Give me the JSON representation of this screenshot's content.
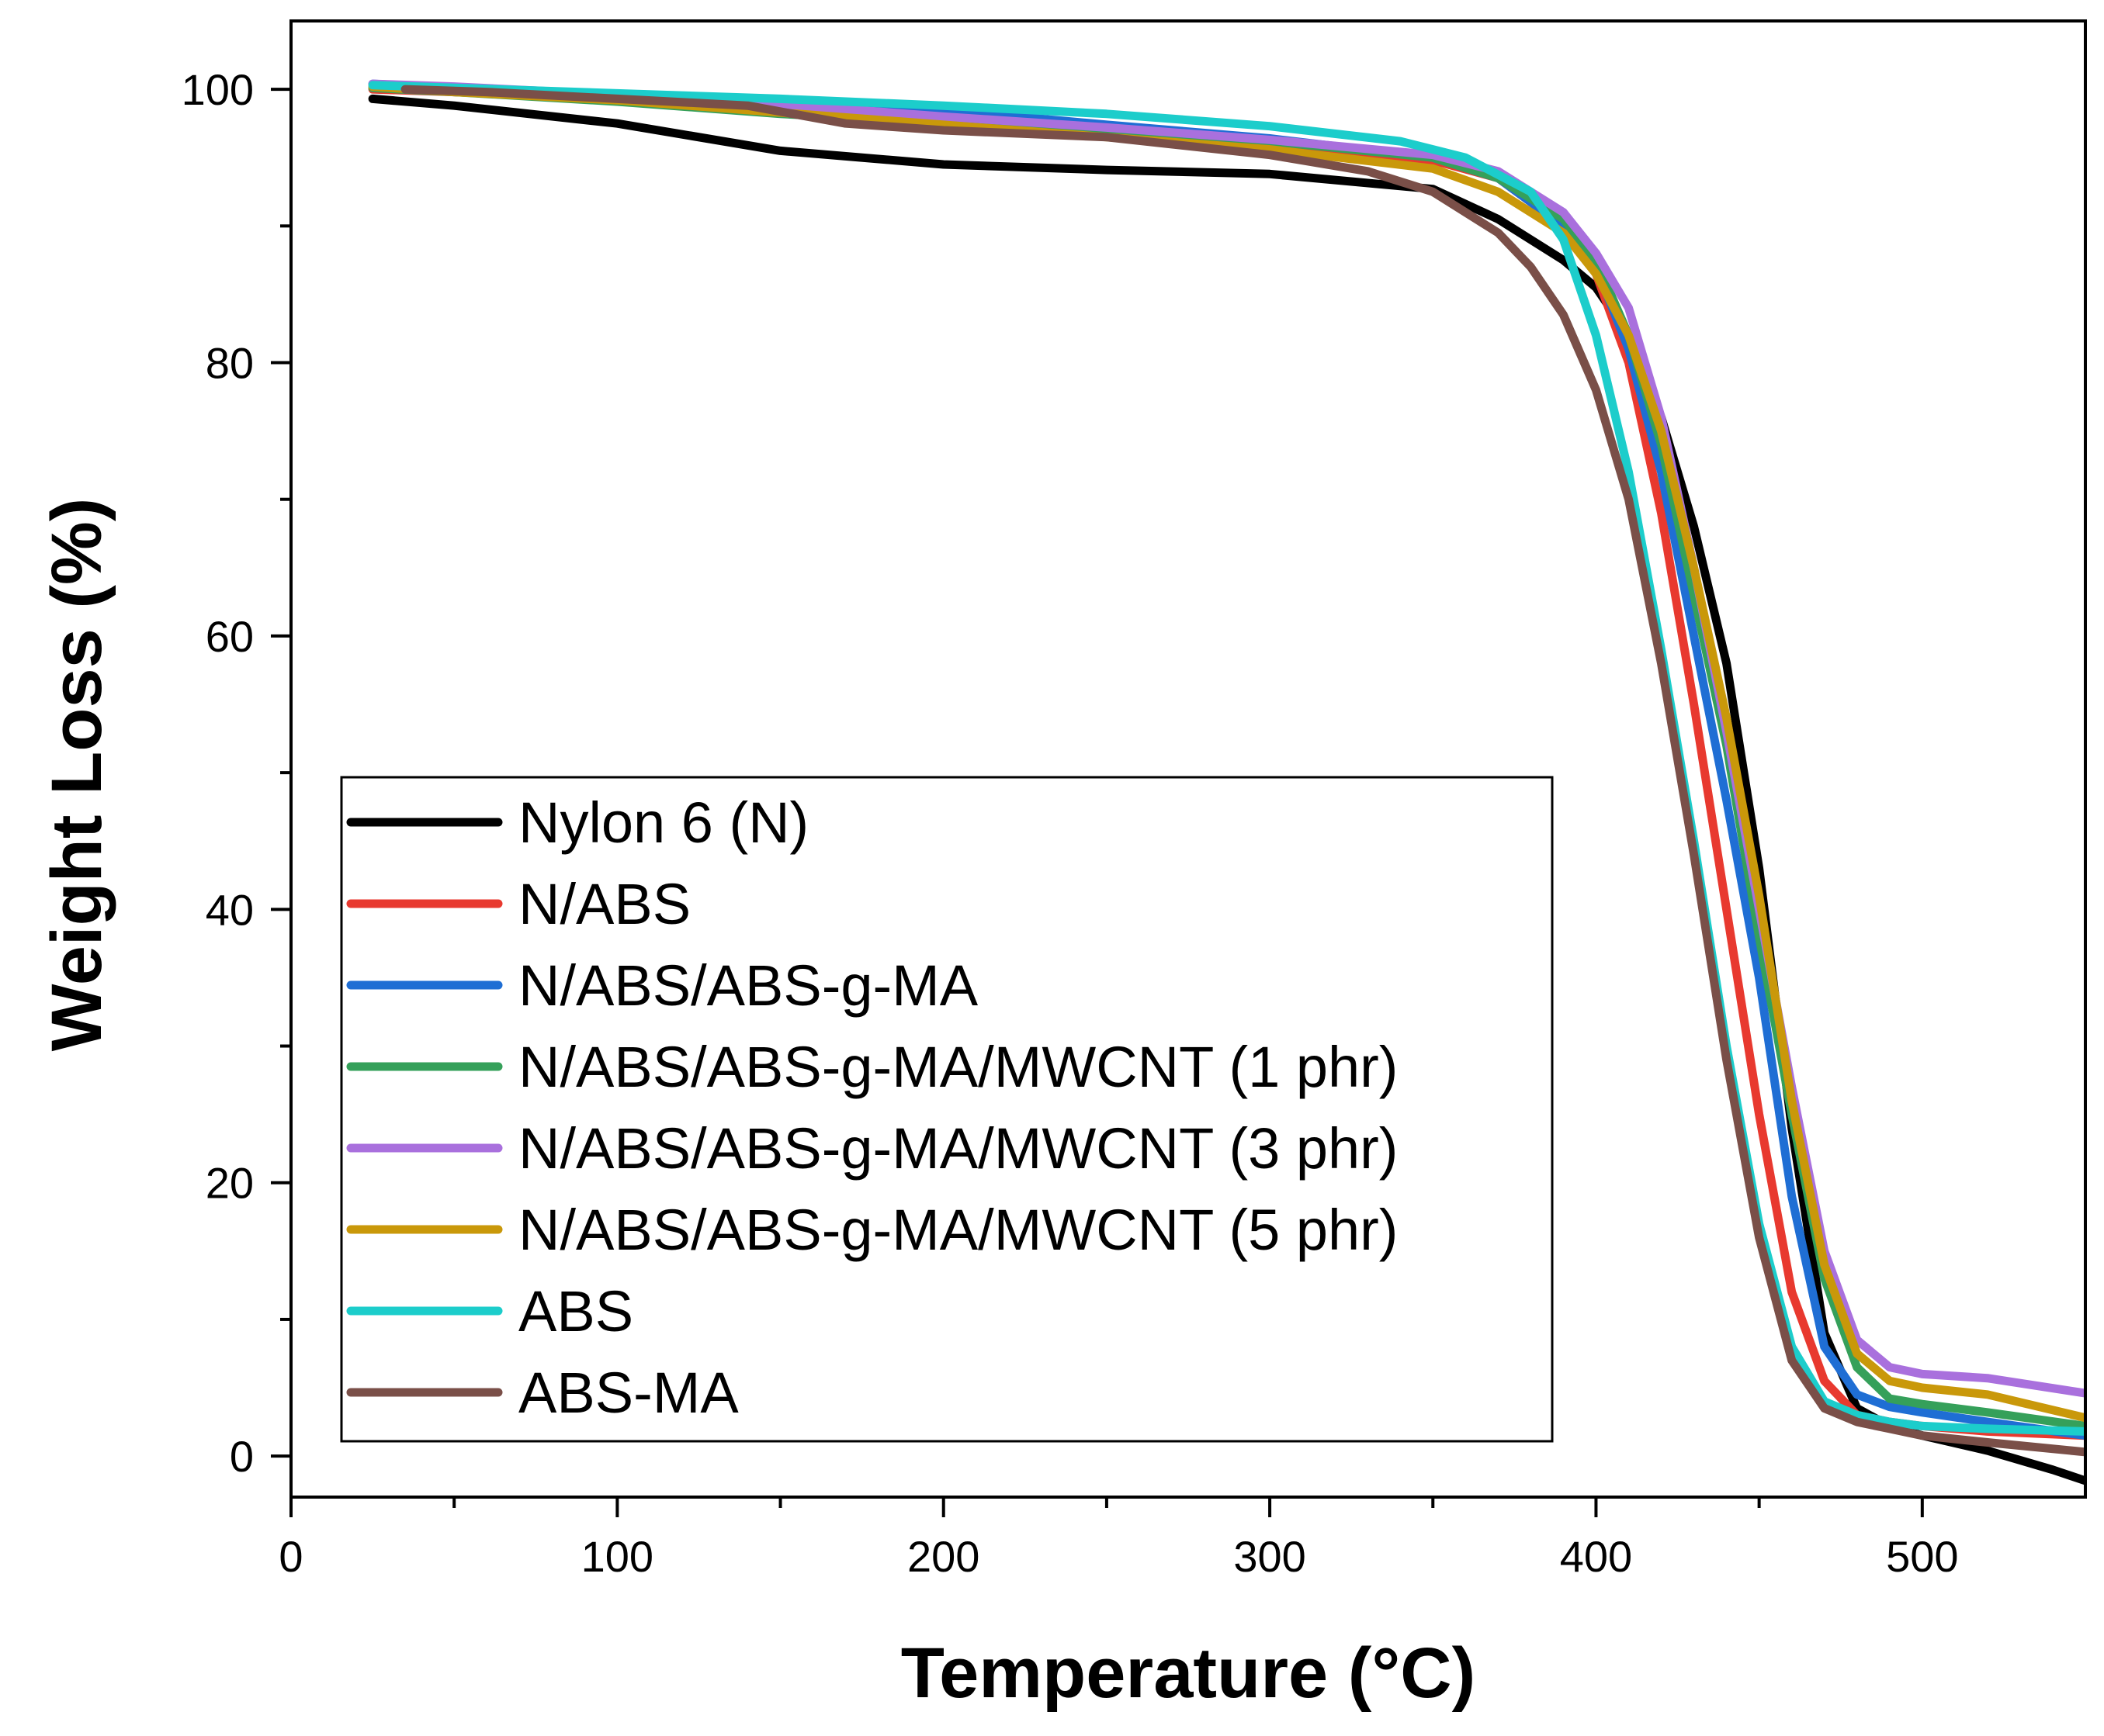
{
  "chart_data": {
    "type": "line",
    "title": "",
    "xlabel": "Temperature (°C)",
    "ylabel": "Weight Loss (%)",
    "xlim": [
      0,
      550
    ],
    "ylim": [
      -3,
      105
    ],
    "xticks": [
      0,
      100,
      200,
      300,
      400,
      500
    ],
    "xtick_labels": [
      "0",
      "100",
      "200",
      "300",
      "400",
      "500"
    ],
    "yticks": [
      0,
      20,
      40,
      60,
      80,
      100
    ],
    "ytick_labels": [
      "0",
      "20",
      "40",
      "60",
      "80",
      "100"
    ],
    "grid": false,
    "legend_position": "bottom-left",
    "series": [
      {
        "name": "Nylon 6 (N)",
        "color": "#000000",
        "x": [
          25,
          50,
          100,
          150,
          200,
          250,
          300,
          350,
          370,
          390,
          400,
          410,
          420,
          430,
          440,
          450,
          460,
          470,
          480,
          490,
          500,
          520,
          540,
          550
        ],
        "y": [
          99.3,
          98.8,
          97.5,
          95.5,
          94.5,
          94.1,
          93.8,
          92.7,
          90.5,
          87.5,
          85.5,
          82,
          76,
          68,
          58,
          43,
          24,
          9,
          3.5,
          2.2,
          1.5,
          0.4,
          -1,
          -1.8
        ]
      },
      {
        "name": "N/ABS",
        "color": "#e8392f",
        "x": [
          25,
          50,
          100,
          150,
          200,
          250,
          300,
          350,
          370,
          390,
          400,
          410,
          420,
          430,
          440,
          450,
          460,
          470,
          480,
          490,
          500,
          520,
          550
        ],
        "y": [
          100,
          99.8,
          99.3,
          98.5,
          97.5,
          96.7,
          96,
          94.8,
          93.5,
          90,
          86.5,
          80,
          69,
          55,
          40,
          25,
          12,
          5.5,
          3,
          2.5,
          2.2,
          1.8,
          1.5
        ]
      },
      {
        "name": "N/ABS/ABS-g-MA",
        "color": "#1f6ed4",
        "x": [
          25,
          50,
          100,
          150,
          190,
          250,
          300,
          350,
          370,
          390,
          400,
          410,
          420,
          430,
          440,
          450,
          460,
          470,
          480,
          490,
          500,
          520,
          550
        ],
        "y": [
          100.4,
          100.1,
          99.6,
          99.1,
          98.7,
          97.4,
          96.4,
          95,
          93.5,
          90,
          87,
          81,
          72,
          60,
          48,
          35,
          19,
          8,
          4.5,
          3.6,
          3.2,
          2.5,
          1.5
        ]
      },
      {
        "name": "N/ABS/ABS-g-MA/MWCNT (1 phr)",
        "color": "#35a05a",
        "x": [
          25,
          50,
          100,
          150,
          200,
          250,
          300,
          350,
          370,
          390,
          400,
          410,
          420,
          430,
          440,
          450,
          460,
          470,
          480,
          490,
          500,
          520,
          550
        ],
        "y": [
          100.1,
          99.8,
          99.1,
          98.2,
          97.6,
          97,
          96.2,
          95,
          93.5,
          90.5,
          87.5,
          82,
          74,
          63,
          52,
          38,
          25,
          13,
          6.5,
          4.2,
          3.8,
          3.2,
          2.2
        ]
      },
      {
        "name": "N/ABS/ABS-g-MA/MWCNT (3 phr)",
        "color": "#a970dd",
        "x": [
          25,
          50,
          100,
          150,
          200,
          250,
          300,
          350,
          370,
          390,
          400,
          410,
          420,
          430,
          440,
          450,
          460,
          470,
          480,
          490,
          500,
          520,
          550
        ],
        "y": [
          100.4,
          100.2,
          99.6,
          98.9,
          98,
          97.2,
          96.3,
          95.2,
          94,
          91,
          88,
          84,
          76,
          65,
          53,
          40,
          27,
          15,
          8.5,
          6.5,
          6,
          5.7,
          4.6
        ]
      },
      {
        "name": "N/ABS/ABS-g-MA/MWCNT (5 phr)",
        "color": "#c9980a",
        "x": [
          25,
          50,
          100,
          150,
          200,
          250,
          300,
          350,
          370,
          390,
          400,
          410,
          420,
          430,
          440,
          450,
          460,
          470,
          480,
          490,
          500,
          520,
          550
        ],
        "y": [
          100.2,
          99.8,
          99.2,
          98.3,
          97.4,
          96.5,
          95.6,
          94.2,
          92.5,
          89.5,
          86.5,
          82,
          75,
          65,
          54,
          41,
          26,
          14,
          7.5,
          5.5,
          5,
          4.5,
          2.8
        ]
      },
      {
        "name": "ABS",
        "color": "#1ccdcb",
        "x": [
          25,
          50,
          100,
          150,
          200,
          250,
          300,
          340,
          360,
          380,
          390,
          400,
          410,
          420,
          430,
          440,
          450,
          460,
          470,
          480,
          490,
          500,
          520,
          550
        ],
        "y": [
          100.3,
          100.1,
          99.7,
          99.3,
          98.8,
          98.2,
          97.3,
          96.2,
          95,
          92.5,
          89,
          82,
          72,
          59,
          45,
          30,
          17,
          8,
          4,
          3,
          2.5,
          2.2,
          2,
          1.8
        ]
      },
      {
        "name": "ABS-MA",
        "color": "#7a4f48",
        "x": [
          35,
          60,
          100,
          140,
          170,
          200,
          250,
          300,
          330,
          350,
          370,
          380,
          390,
          400,
          410,
          420,
          430,
          440,
          450,
          460,
          470,
          480,
          490,
          500,
          520,
          550
        ],
        "y": [
          100,
          99.8,
          99.3,
          98.8,
          97.5,
          97,
          96.5,
          95.2,
          94,
          92.5,
          89.5,
          87,
          83.5,
          78,
          70,
          58,
          44,
          29,
          16,
          7,
          3.5,
          2.5,
          2,
          1.5,
          1,
          0.3
        ]
      }
    ]
  }
}
